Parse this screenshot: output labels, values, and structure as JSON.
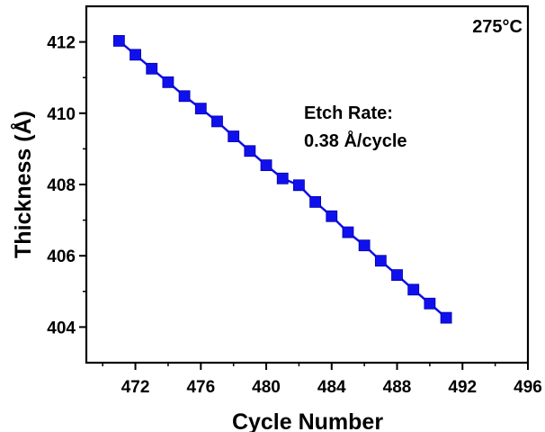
{
  "chart_data": {
    "type": "line",
    "xlabel": "Cycle Number",
    "ylabel": "Thickness (Å)",
    "xlim": [
      469,
      496
    ],
    "ylim": [
      403,
      413
    ],
    "x_ticks": [
      472,
      476,
      480,
      484,
      488,
      492,
      496
    ],
    "y_ticks": [
      404,
      406,
      408,
      410,
      412
    ],
    "x_tick_labels": [
      "472",
      "476",
      "480",
      "484",
      "488",
      "492",
      "496"
    ],
    "y_tick_labels": [
      "404",
      "406",
      "408",
      "410",
      "412"
    ],
    "grid": false,
    "marker": "square",
    "series_color": "#1010ee",
    "annotations": {
      "temperature": "275°C",
      "etch_rate_label": "Etch Rate:",
      "etch_rate_value": "0.38 Å/cycle"
    },
    "series": [
      {
        "x": [
          471,
          472,
          473,
          474,
          475,
          476,
          477,
          478,
          479,
          480,
          481,
          482,
          483,
          484,
          485,
          486,
          487,
          488,
          489,
          490,
          491
        ],
        "y": [
          412.03,
          411.64,
          411.25,
          410.87,
          410.48,
          410.13,
          409.77,
          409.35,
          408.94,
          408.54,
          408.17,
          407.98,
          407.51,
          407.11,
          406.66,
          406.29,
          405.86,
          405.46,
          405.05,
          404.66,
          404.26
        ]
      }
    ]
  }
}
